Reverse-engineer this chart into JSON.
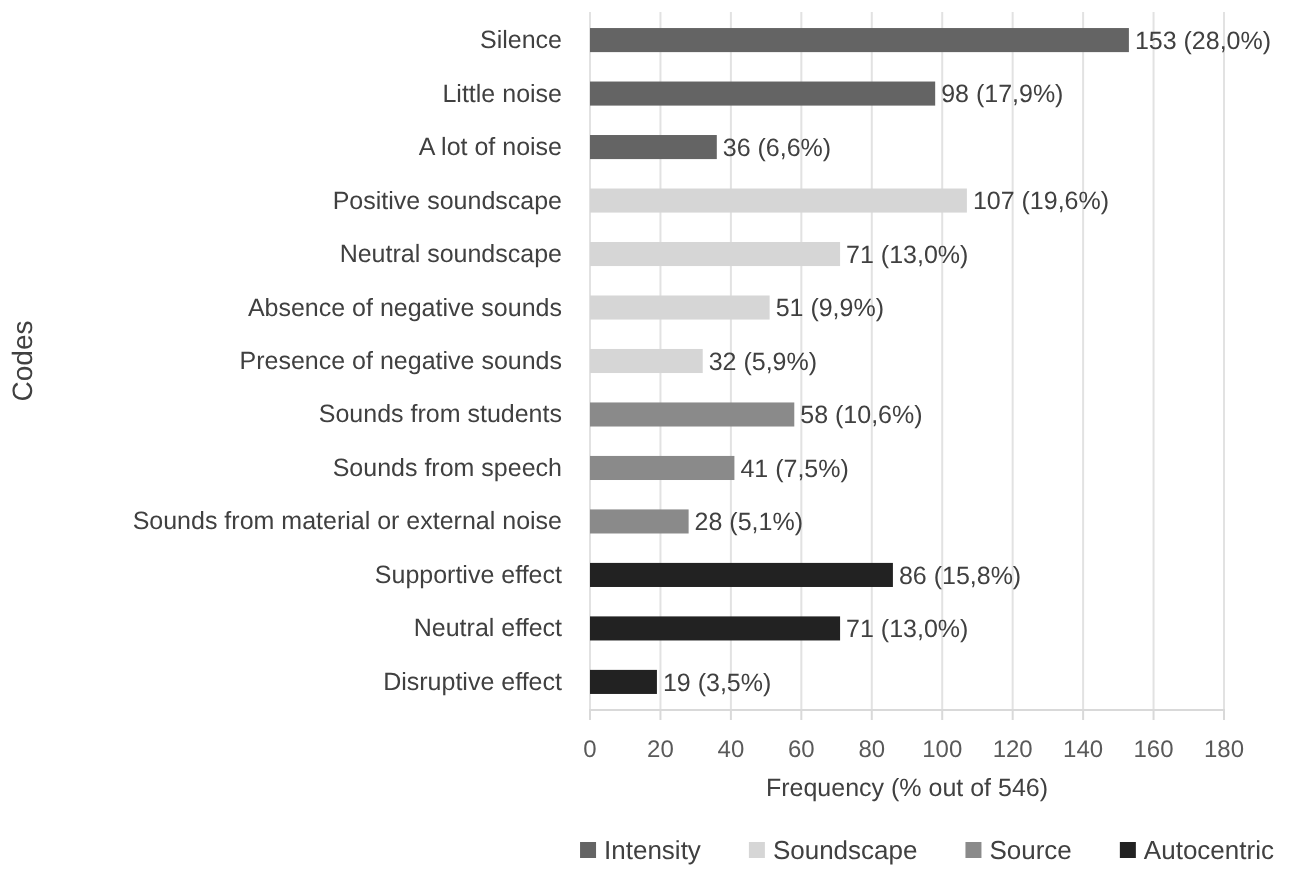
{
  "chart_data": {
    "type": "bar",
    "orientation": "horizontal",
    "ylabel": "Codes",
    "xlabel": "Frequency (% out of 546)",
    "categories": [
      "Silence",
      "Little noise",
      "A lot of noise",
      "Positive soundscape",
      "Neutral soundscape",
      "Absence of negative sounds",
      "Presence of negative sounds",
      "Sounds from students",
      "Sounds from speech",
      "Sounds from material or external noise",
      "Supportive effect",
      "Neutral effect",
      "Disruptive effect"
    ],
    "series": [
      {
        "name": "Intensity",
        "color": "#646464",
        "values": [
          153,
          98,
          36,
          null,
          null,
          null,
          null,
          null,
          null,
          null,
          null,
          null,
          null
        ],
        "value_labels": [
          "153 (28,0%)",
          "98 (17,9%)",
          "36 (6,6%)",
          null,
          null,
          null,
          null,
          null,
          null,
          null,
          null,
          null,
          null
        ]
      },
      {
        "name": "Soundscape",
        "color": "#d6d6d6",
        "values": [
          null,
          null,
          null,
          107,
          71,
          51,
          32,
          null,
          null,
          null,
          null,
          null,
          null
        ],
        "value_labels": [
          null,
          null,
          null,
          "107 (19,6%)",
          "71 (13,0%)",
          "51 (9,9%)",
          "32 (5,9%)",
          null,
          null,
          null,
          null,
          null,
          null
        ]
      },
      {
        "name": "Source",
        "color": "#8a8a8a",
        "values": [
          null,
          null,
          null,
          null,
          null,
          null,
          null,
          58,
          41,
          28,
          null,
          null,
          null
        ],
        "value_labels": [
          null,
          null,
          null,
          null,
          null,
          null,
          null,
          "58 (10,6%)",
          "41 (7,5%)",
          "28 (5,1%)",
          null,
          null,
          null
        ]
      },
      {
        "name": "Autocentric",
        "color": "#222222",
        "values": [
          null,
          null,
          null,
          null,
          null,
          null,
          null,
          null,
          null,
          null,
          86,
          71,
          19
        ],
        "value_labels": [
          null,
          null,
          null,
          null,
          null,
          null,
          null,
          null,
          null,
          null,
          "86 (15,8%)",
          "71 (13,0%)",
          "19 (3,5%)"
        ]
      }
    ],
    "xlim": [
      0,
      180
    ],
    "xticks": [
      0,
      20,
      40,
      60,
      80,
      100,
      120,
      140,
      160,
      180
    ],
    "grid": "x",
    "legend": "bottom"
  }
}
